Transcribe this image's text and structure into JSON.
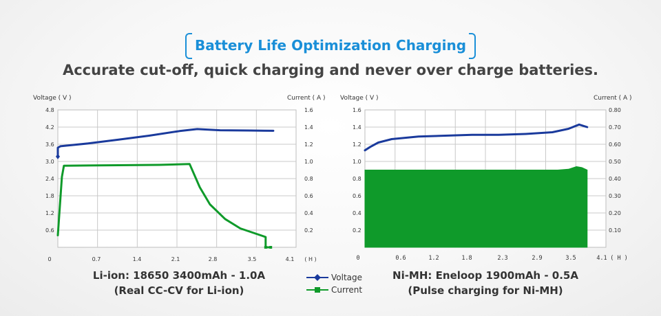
{
  "header": {
    "title": "Battery Life Optimization Charging",
    "subtitle": "Accurate cut-off, quick charging and never over charge batteries."
  },
  "colors": {
    "voltage": "#1a3a9c",
    "current": "#0f9a2a",
    "title": "#1a8fd8"
  },
  "legend": {
    "items": [
      {
        "name": "Voltage",
        "color": "#1a3a9c",
        "marker": "diamond"
      },
      {
        "name": "Current",
        "color": "#0f9a2a",
        "marker": "square"
      }
    ],
    "placement": "bottom-center"
  },
  "chart_data": [
    {
      "type": "line",
      "caption_line1": "Li-ion: 18650 3400mAh - 1.0A",
      "caption_line2": "(Real CC-CV for Li-ion)",
      "ylabel_left": "Voltage ( V )",
      "ylabel_right": "Current ( A )",
      "x_unit": "( H )",
      "x_ticks": [
        "0",
        "0.7",
        "1.4",
        "2.1",
        "2.8",
        "3.5",
        "4.1"
      ],
      "y_left_ticks": [
        "4.8",
        "4.2",
        "3.6",
        "3.0",
        "2.4",
        "1.8",
        "1.2",
        "0.6"
      ],
      "y_right_ticks": [
        "1.6",
        "1.4",
        "1.2",
        "1.0",
        "0.8",
        "0.6",
        "0.4",
        "0.2"
      ],
      "xlim": [
        0,
        4.7
      ],
      "ylim_left": [
        0,
        4.8
      ],
      "ylim_right": [
        0,
        1.6
      ],
      "grid": true,
      "series": [
        {
          "name": "Voltage",
          "axis": "left",
          "x": [
            0,
            0,
            0.05,
            0.2,
            0.6,
            1.2,
            1.8,
            2.4,
            2.75,
            3.2,
            3.8,
            4.25
          ],
          "y": [
            3.17,
            3.48,
            3.53,
            3.56,
            3.63,
            3.76,
            3.9,
            4.06,
            4.13,
            4.09,
            4.08,
            4.07
          ]
        },
        {
          "name": "Current",
          "axis": "right",
          "x": [
            0,
            0.08,
            0.12,
            1.0,
            2.0,
            2.6,
            2.8,
            3.0,
            3.3,
            3.6,
            3.9,
            4.1,
            4.1,
            4.2
          ],
          "y": [
            0.14,
            0.82,
            0.95,
            0.955,
            0.96,
            0.97,
            0.7,
            0.5,
            0.33,
            0.22,
            0.16,
            0.12,
            0,
            0
          ]
        }
      ]
    },
    {
      "type": "area",
      "caption_line1": "Ni-MH: Eneloop 1900mAh - 0.5A",
      "caption_line2": "(Pulse charging for Ni-MH)",
      "ylabel_left": "Voltage ( V )",
      "ylabel_right": "Current ( A )",
      "x_unit": "( H )",
      "x_ticks": [
        "0",
        "0.6",
        "1.2",
        "1.8",
        "2.3",
        "2.9",
        "3.5",
        "4.1"
      ],
      "y_left_ticks": [
        "1.6",
        "1.4",
        "1.2",
        "1.0",
        "0.8",
        "0.6",
        "0.4",
        "0.2"
      ],
      "y_right_ticks": [
        "0.80",
        "0.70",
        "0.60",
        "0.50",
        "0.40",
        "0.30",
        "0.20",
        "0.10"
      ],
      "xlim": [
        0,
        4.5
      ],
      "ylim_left": [
        0,
        1.6
      ],
      "ylim_right": [
        0,
        0.8
      ],
      "grid": true,
      "series": [
        {
          "name": "Voltage",
          "axis": "left",
          "x": [
            0,
            0.1,
            0.25,
            0.5,
            1.0,
            1.5,
            2.0,
            2.5,
            3.0,
            3.5,
            3.8,
            4.0,
            4.1,
            4.15
          ],
          "y": [
            1.13,
            1.17,
            1.22,
            1.26,
            1.29,
            1.3,
            1.31,
            1.31,
            1.32,
            1.34,
            1.38,
            1.43,
            1.41,
            1.4
          ]
        },
        {
          "name": "Current",
          "axis": "right",
          "fill": true,
          "x": [
            0,
            3.6,
            3.8,
            3.95,
            4.05,
            4.15
          ],
          "y": [
            0.45,
            0.45,
            0.455,
            0.47,
            0.465,
            0.45
          ]
        }
      ]
    }
  ]
}
